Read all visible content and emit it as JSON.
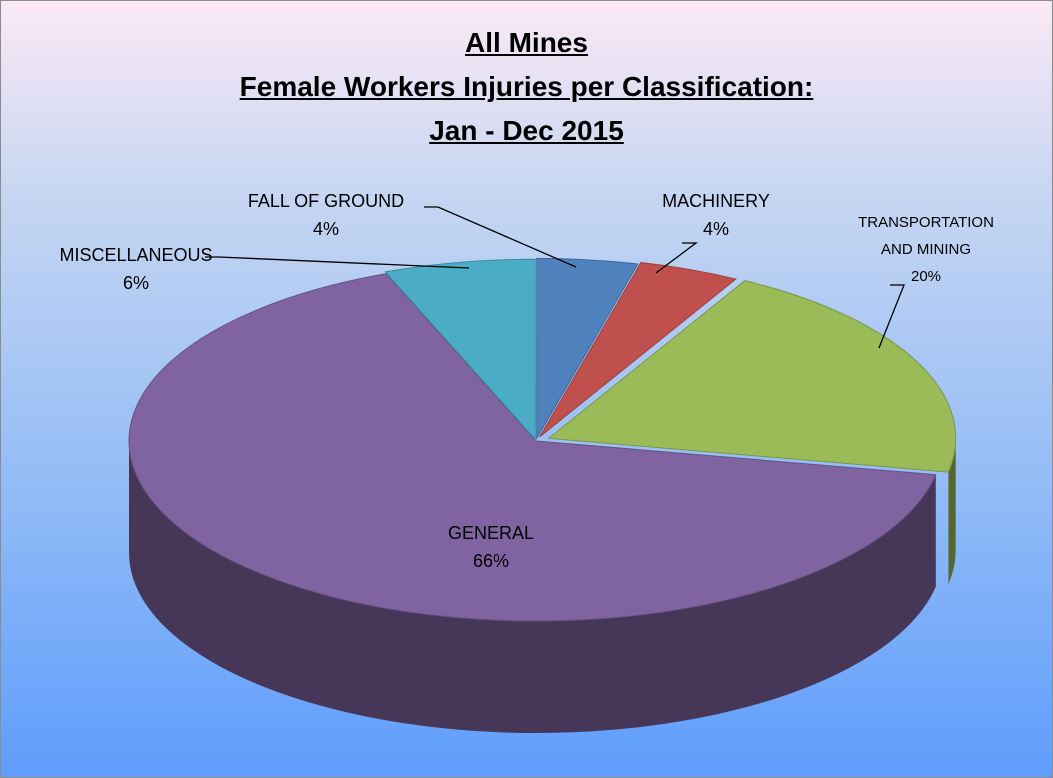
{
  "chart_data": {
    "type": "pie",
    "title": [
      "All Mines",
      "Female Workers Injuries per Classification:",
      "Jan - Dec 2015"
    ],
    "categories": [
      "FALL OF GROUND",
      "MACHINERY",
      "TRANSPORTATION AND MINING",
      "GENERAL",
      "MISCELLANEOUS"
    ],
    "values": [
      4,
      4,
      20,
      66,
      6
    ],
    "value_labels": [
      "4%",
      "4%",
      "20%",
      "66%",
      "6%"
    ],
    "colors": [
      "#4f81bd",
      "#c0504d",
      "#9bbb59",
      "#8064a2",
      "#4bacc6"
    ]
  }
}
